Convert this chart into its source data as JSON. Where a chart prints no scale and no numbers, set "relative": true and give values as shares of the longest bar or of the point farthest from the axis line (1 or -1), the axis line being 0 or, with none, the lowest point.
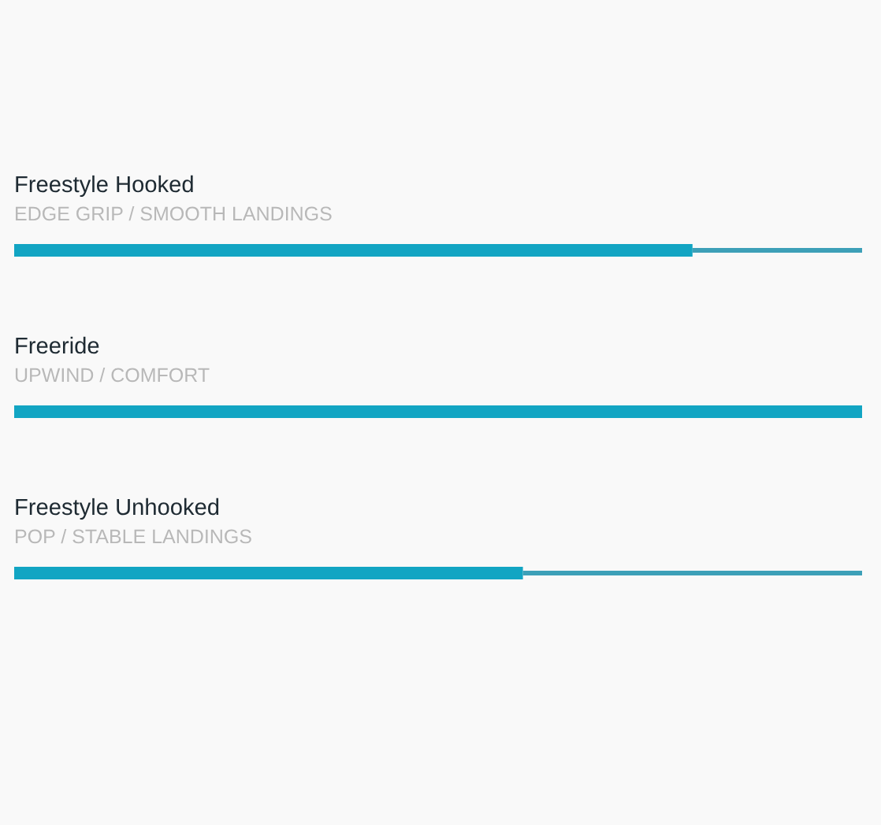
{
  "chart_data": {
    "type": "bar",
    "orientation": "horizontal",
    "stacked": true,
    "relative": true,
    "categories": [
      "Freestyle Hooked",
      "Freeride",
      "Freestyle Unhooked"
    ],
    "annotations": [
      "EDGE GRIP / SMOOTH LANDINGS",
      "UPWIND / COMFORT",
      "POP / STABLE LANDINGS"
    ],
    "series": [
      {
        "color": "#12a5c3",
        "values": [
          0.8,
          1.0,
          0.6
        ]
      },
      {
        "color": "#3da0b8",
        "values": [
          0.2,
          null,
          0.4
        ]
      }
    ]
  }
}
